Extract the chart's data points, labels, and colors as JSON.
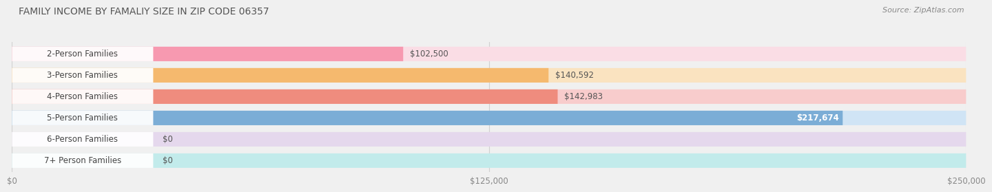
{
  "title": "FAMILY INCOME BY FAMALIY SIZE IN ZIP CODE 06357",
  "source": "Source: ZipAtlas.com",
  "categories": [
    "2-Person Families",
    "3-Person Families",
    "4-Person Families",
    "5-Person Families",
    "6-Person Families",
    "7+ Person Families"
  ],
  "values": [
    102500,
    140592,
    142983,
    217674,
    0,
    0
  ],
  "bar_colors": [
    "#F799B0",
    "#F5B96E",
    "#EF8C7E",
    "#7BADD6",
    "#C9ACD8",
    "#72C8C2"
  ],
  "bar_bg_colors": [
    "#FADDE5",
    "#FAE3C0",
    "#F8CCCC",
    "#D0E4F5",
    "#E5D8ED",
    "#C2EBEB"
  ],
  "value_labels": [
    "$102,500",
    "$140,592",
    "$142,983",
    "$217,674",
    "$0",
    "$0"
  ],
  "xmax": 250000,
  "xtick_labels": [
    "$0",
    "$125,000",
    "$250,000"
  ],
  "xtick_values": [
    0,
    125000,
    250000
  ],
  "background_color": "#f0f0f0",
  "label_bg_color": "#ffffff",
  "title_color": "#555555",
  "source_color": "#888888",
  "bar_height": 0.68,
  "label_fontsize": 8.5,
  "title_fontsize": 10,
  "source_fontsize": 8
}
